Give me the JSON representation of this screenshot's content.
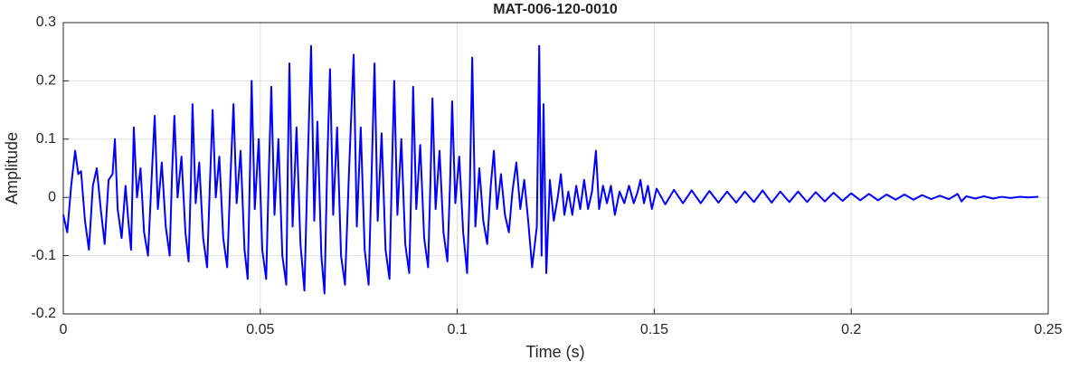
{
  "chart_data": {
    "type": "line",
    "title": "MAT-006-120-0010",
    "xlabel": "Time (s)",
    "ylabel": "Amplitude",
    "color": "#0000ff",
    "grid": true,
    "xlim": [
      0,
      0.25
    ],
    "xticks": [
      0,
      0.05,
      0.1,
      0.15,
      0.2,
      0.25
    ],
    "ylim": [
      -0.2,
      0.3
    ],
    "yticks": [
      -0.2,
      -0.1,
      0,
      0.1,
      0.2,
      0.3
    ],
    "x": [
      0,
      0.001,
      0.002,
      0.003,
      0.0038,
      0.0045,
      0.0055,
      0.0065,
      0.0075,
      0.0085,
      0.0095,
      0.0105,
      0.0115,
      0.0125,
      0.0131,
      0.0138,
      0.0148,
      0.0158,
      0.0165,
      0.0172,
      0.0179,
      0.0187,
      0.0196,
      0.0205,
      0.0215,
      0.0224,
      0.0232,
      0.024,
      0.025,
      0.026,
      0.027,
      0.0276,
      0.0282,
      0.029,
      0.03,
      0.031,
      0.0318,
      0.0324,
      0.0328,
      0.0336,
      0.0345,
      0.0355,
      0.0365,
      0.0372,
      0.0379,
      0.0387,
      0.0396,
      0.0406,
      0.0416,
      0.0424,
      0.0432,
      0.044,
      0.045,
      0.046,
      0.0468,
      0.0474,
      0.0478,
      0.0486,
      0.0496,
      0.0505,
      0.0515,
      0.0522,
      0.0528,
      0.0536,
      0.0546,
      0.0556,
      0.0566,
      0.057,
      0.0574,
      0.0582,
      0.0592,
      0.0602,
      0.0612,
      0.062,
      0.0629,
      0.0637,
      0.0645,
      0.0655,
      0.0663,
      0.067,
      0.0677,
      0.0685,
      0.0695,
      0.0705,
      0.0715,
      0.0725,
      0.0737,
      0.0745,
      0.0755,
      0.0765,
      0.0775,
      0.0783,
      0.079,
      0.0798,
      0.0808,
      0.0818,
      0.0828,
      0.0834,
      0.084,
      0.0848,
      0.0858,
      0.0868,
      0.0878,
      0.0884,
      0.0888,
      0.0896,
      0.0906,
      0.0916,
      0.0926,
      0.0932,
      0.0937,
      0.0945,
      0.0955,
      0.0965,
      0.0975,
      0.0982,
      0.0987,
      0.0995,
      0.1005,
      0.1015,
      0.1025,
      0.1032,
      0.1038,
      0.1046,
      0.1056,
      0.1066,
      0.1076,
      0.1085,
      0.1093,
      0.1101,
      0.1111,
      0.1121,
      0.1131,
      0.114,
      0.115,
      0.116,
      0.117,
      0.118,
      0.119,
      0.1202,
      0.1208,
      0.1214,
      0.1219,
      0.1226,
      0.1235,
      0.1245,
      0.1255,
      0.1263,
      0.1272,
      0.1282,
      0.1292,
      0.1302,
      0.1312,
      0.1322,
      0.1332,
      0.1342,
      0.1352,
      0.136,
      0.137,
      0.138,
      0.139,
      0.14,
      0.1412,
      0.1424,
      0.1436,
      0.1448,
      0.1458,
      0.1465,
      0.1474,
      0.1484,
      0.1494,
      0.1506,
      0.1528,
      0.155,
      0.1573,
      0.1595,
      0.1618,
      0.164,
      0.1663,
      0.1685,
      0.1708,
      0.173,
      0.1753,
      0.1775,
      0.1798,
      0.182,
      0.1843,
      0.1865,
      0.1888,
      0.191,
      0.1933,
      0.1955,
      0.1978,
      0.2,
      0.2023,
      0.2045,
      0.2068,
      0.209,
      0.2113,
      0.2135,
      0.2158,
      0.218,
      0.2203,
      0.2225,
      0.2248,
      0.227,
      0.228,
      0.2292,
      0.2315,
      0.2337,
      0.236,
      0.2382,
      0.2405,
      0.2427,
      0.245,
      0.2475
    ],
    "values": [
      -0.03,
      -0.06,
      0.02,
      0.08,
      0.04,
      0.045,
      -0.04,
      -0.09,
      0.02,
      0.05,
      -0.02,
      -0.08,
      0.03,
      0.04,
      0.1,
      -0.02,
      -0.07,
      0.02,
      -0.04,
      -0.09,
      0.12,
      0,
      0.05,
      -0.06,
      -0.1,
      0.03,
      0.14,
      -0.02,
      0.06,
      -0.05,
      -0.1,
      0.04,
      0.14,
      0,
      0.07,
      -0.06,
      -0.11,
      0.03,
      0.16,
      -0.01,
      0.06,
      -0.07,
      -0.12,
      0.02,
      0.15,
      0,
      0.07,
      -0.07,
      -0.12,
      0.03,
      0.16,
      -0.01,
      0.08,
      -0.09,
      -0.14,
      0.05,
      0.2,
      -0.02,
      0.1,
      -0.09,
      -0.14,
      0.05,
      0.19,
      -0.03,
      0.1,
      -0.1,
      -0.15,
      0.06,
      0.23,
      -0.05,
      0.12,
      -0.08,
      -0.16,
      0.05,
      0.26,
      -0.04,
      0.13,
      -0.1,
      -0.165,
      0.06,
      0.22,
      -0.03,
      0.12,
      -0.1,
      -0.15,
      0.04,
      0.245,
      -0.05,
      0.12,
      -0.09,
      -0.15,
      0.05,
      0.23,
      -0.04,
      0.11,
      -0.09,
      -0.14,
      0.04,
      0.2,
      -0.03,
      0.1,
      -0.08,
      -0.13,
      0.04,
      0.19,
      -0.02,
      0.09,
      -0.07,
      -0.12,
      0.03,
      0.17,
      -0.02,
      0.08,
      -0.06,
      -0.11,
      0.03,
      0.165,
      -0.01,
      0.07,
      -0.06,
      -0.13,
      0.02,
      0.24,
      -0.05,
      0.05,
      -0.04,
      -0.08,
      0.02,
      0.08,
      -0.02,
      0.04,
      -0.03,
      -0.06,
      0.01,
      0.06,
      -0.02,
      0.03,
      -0.04,
      -0.12,
      -0.05,
      0.26,
      -0.1,
      0.16,
      -0.13,
      0.03,
      -0.04,
      0,
      0.04,
      -0.03,
      0.01,
      -0.03,
      0.02,
      -0.02,
      0.03,
      -0.02,
      0.01,
      0.08,
      -0.02,
      0.02,
      -0.01,
      0.02,
      -0.03,
      0.01,
      -0.01,
      0.02,
      -0.01,
      0.01,
      0.03,
      -0.01,
      0.02,
      -0.02,
      0.015,
      -0.012,
      0.013,
      -0.01,
      0.012,
      -0.01,
      0.011,
      -0.009,
      0.01,
      -0.009,
      0.01,
      -0.008,
      0.012,
      -0.009,
      0.01,
      -0.008,
      0.01,
      -0.008,
      0.009,
      -0.007,
      0.008,
      -0.006,
      0.007,
      -0.005,
      0.006,
      -0.005,
      0.005,
      -0.004,
      0.005,
      -0.004,
      0.004,
      -0.003,
      0.003,
      -0.003,
      0.006,
      -0.007,
      0.002,
      -0.002,
      0.002,
      -0.002,
      0.001,
      -0.001,
      0.001,
      0,
      0.001
    ]
  }
}
